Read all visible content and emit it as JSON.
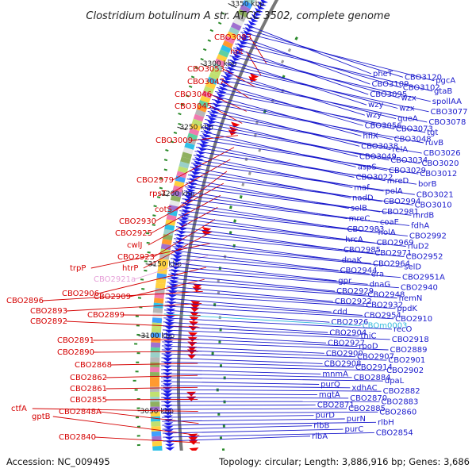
{
  "title": "Clostridium botulinum A str. ATCC 3502, complete genome",
  "footer": {
    "accession": "Accession: NC_009495",
    "summary": "Topology: circular; Length: 3,886,916 bp; Genes: 3,686"
  },
  "kbp_marks": [
    "3350 kbp",
    "3300 kbp",
    "3250 kbp",
    "3200 kbp",
    "3150 kbp",
    "3100 kbp",
    "3050 kbp"
  ],
  "left_labels": [
    {
      "text": "CBO3083",
      "color": "red"
    },
    {
      "text": "hpt",
      "color": "red"
    },
    {
      "text": "CBO3053",
      "color": "red"
    },
    {
      "text": "CBO3047",
      "color": "red"
    },
    {
      "text": "CBO3046",
      "color": "red"
    },
    {
      "text": "CBO3045",
      "color": "red"
    },
    {
      "text": "CBO3009",
      "color": "red"
    },
    {
      "text": "CBO2979",
      "color": "red"
    },
    {
      "text": "rpsT",
      "color": "red"
    },
    {
      "text": "cotS",
      "color": "red"
    },
    {
      "text": "CBO2930",
      "color": "red"
    },
    {
      "text": "CBO2925",
      "color": "red"
    },
    {
      "text": "cwlJ",
      "color": "red"
    },
    {
      "text": "CBO2923",
      "color": "red"
    },
    {
      "text": "htrP",
      "color": "red"
    },
    {
      "text": "trpP",
      "color": "red"
    },
    {
      "text": "CBO2921a",
      "color": "pink"
    },
    {
      "text": "CBO2906",
      "color": "red"
    },
    {
      "text": "CBO2909",
      "color": "red"
    },
    {
      "text": "CBO2896",
      "color": "red"
    },
    {
      "text": "CBO2893",
      "color": "red"
    },
    {
      "text": "CBO2899",
      "color": "red"
    },
    {
      "text": "CBO2892",
      "color": "red"
    },
    {
      "text": "CBO2891",
      "color": "red"
    },
    {
      "text": "CBO2890",
      "color": "red"
    },
    {
      "text": "CBO2868",
      "color": "red"
    },
    {
      "text": "CBO2862",
      "color": "red"
    },
    {
      "text": "CBO2861",
      "color": "red"
    },
    {
      "text": "CBO2855",
      "color": "red"
    },
    {
      "text": "ctfA",
      "color": "red"
    },
    {
      "text": "CBO2848A",
      "color": "red"
    },
    {
      "text": "gptB",
      "color": "red"
    },
    {
      "text": "CBO2840",
      "color": "red"
    }
  ],
  "right_labels": [
    {
      "text": "pheT",
      "color": "blue"
    },
    {
      "text": "CBO3120",
      "color": "blue"
    },
    {
      "text": "pgcA",
      "color": "blue"
    },
    {
      "text": "CBO3109",
      "color": "blue"
    },
    {
      "text": "CBO3102",
      "color": "blue"
    },
    {
      "text": "gtaB",
      "color": "blue"
    },
    {
      "text": "CBO3095",
      "color": "blue"
    },
    {
      "text": "wzx",
      "color": "blue"
    },
    {
      "text": "spollAA",
      "color": "blue"
    },
    {
      "text": "wzy",
      "color": "blue"
    },
    {
      "text": "wzx",
      "color": "blue"
    },
    {
      "text": "CBO3077",
      "color": "blue"
    },
    {
      "text": "wzy",
      "color": "blue"
    },
    {
      "text": "queA",
      "color": "blue"
    },
    {
      "text": "CBO3078",
      "color": "blue"
    },
    {
      "text": "CBO3056",
      "color": "blue"
    },
    {
      "text": "CBO3073",
      "color": "blue"
    },
    {
      "text": "tgt",
      "color": "blue"
    },
    {
      "text": "hflX",
      "color": "blue"
    },
    {
      "text": "CBO3048",
      "color": "blue"
    },
    {
      "text": "ruvB",
      "color": "blue"
    },
    {
      "text": "CBO3038",
      "color": "blue"
    },
    {
      "text": "relA",
      "color": "blue"
    },
    {
      "text": "CBO3026",
      "color": "blue"
    },
    {
      "text": "CBO3049",
      "color": "blue"
    },
    {
      "text": "CBO3034",
      "color": "blue"
    },
    {
      "text": "CBO3020",
      "color": "blue"
    },
    {
      "text": "aspS",
      "color": "blue"
    },
    {
      "text": "CBO3029",
      "color": "blue"
    },
    {
      "text": "CBO3012",
      "color": "blue"
    },
    {
      "text": "CBO3022",
      "color": "blue"
    },
    {
      "text": "mreD",
      "color": "blue"
    },
    {
      "text": "borB",
      "color": "blue"
    },
    {
      "text": "maf",
      "color": "blue"
    },
    {
      "text": "polA",
      "color": "blue"
    },
    {
      "text": "CBO3021",
      "color": "blue"
    },
    {
      "text": "nadD",
      "color": "blue"
    },
    {
      "text": "CBO2994",
      "color": "blue"
    },
    {
      "text": "CBO3010",
      "color": "blue"
    },
    {
      "text": "selB",
      "color": "blue"
    },
    {
      "text": "CBO2981",
      "color": "blue"
    },
    {
      "text": "mrdB",
      "color": "blue"
    },
    {
      "text": "mreC",
      "color": "blue"
    },
    {
      "text": "coaE",
      "color": "blue"
    },
    {
      "text": "fdhA",
      "color": "blue"
    },
    {
      "text": "CBO2983",
      "color": "blue"
    },
    {
      "text": "holA",
      "color": "blue"
    },
    {
      "text": "CBO2992",
      "color": "blue"
    },
    {
      "text": "hrcA",
      "color": "blue"
    },
    {
      "text": "CBO2969",
      "color": "blue"
    },
    {
      "text": "rluD2",
      "color": "blue"
    },
    {
      "text": "CBO2985",
      "color": "blue"
    },
    {
      "text": "CBO2971",
      "color": "blue"
    },
    {
      "text": "CBO2952",
      "color": "blue"
    },
    {
      "text": "dnaK",
      "color": "blue"
    },
    {
      "text": "CBO2964",
      "color": "blue"
    },
    {
      "text": "selD",
      "color": "blue"
    },
    {
      "text": "CBO2944",
      "color": "blue"
    },
    {
      "text": "era",
      "color": "blue"
    },
    {
      "text": "CBO2951A",
      "color": "blue"
    },
    {
      "text": "gpr",
      "color": "blue"
    },
    {
      "text": "dnaG",
      "color": "blue"
    },
    {
      "text": "CBO2940",
      "color": "blue"
    },
    {
      "text": "CBO2929",
      "color": "blue"
    },
    {
      "text": "CBO2948",
      "color": "blue"
    },
    {
      "text": "hemN",
      "color": "blue"
    },
    {
      "text": "CBO2922",
      "color": "blue"
    },
    {
      "text": "CBO2932",
      "color": "blue"
    },
    {
      "text": "ppdK",
      "color": "blue"
    },
    {
      "text": "cdd",
      "color": "blue"
    },
    {
      "text": "CBO2954",
      "color": "blue"
    },
    {
      "text": "CBO2910",
      "color": "blue"
    },
    {
      "text": "CBO2926",
      "color": "blue"
    },
    {
      "text": "CBOm0003",
      "color": "cyan"
    },
    {
      "text": "recO",
      "color": "blue"
    },
    {
      "text": "CBO2904",
      "color": "blue"
    },
    {
      "text": "thiC",
      "color": "blue"
    },
    {
      "text": "CBO2918",
      "color": "blue"
    },
    {
      "text": "CBO2927",
      "color": "blue"
    },
    {
      "text": "rpoD",
      "color": "blue"
    },
    {
      "text": "CBO2889",
      "color": "blue"
    },
    {
      "text": "CBO2900",
      "color": "blue"
    },
    {
      "text": "CBO2907",
      "color": "blue"
    },
    {
      "text": "CBO2901",
      "color": "blue"
    },
    {
      "text": "CBO2908",
      "color": "blue"
    },
    {
      "text": "CBO2914",
      "color": "blue"
    },
    {
      "text": "CBO2902",
      "color": "blue"
    },
    {
      "text": "mnmA",
      "color": "blue"
    },
    {
      "text": "CBO2884",
      "color": "blue"
    },
    {
      "text": "dpaL",
      "color": "blue"
    },
    {
      "text": "purQ",
      "color": "blue"
    },
    {
      "text": "xdhAC",
      "color": "blue"
    },
    {
      "text": "CBO2882",
      "color": "blue"
    },
    {
      "text": "mgtA",
      "color": "blue"
    },
    {
      "text": "CBO2870",
      "color": "blue"
    },
    {
      "text": "CBO2883",
      "color": "blue"
    },
    {
      "text": "CBO2871",
      "color": "blue"
    },
    {
      "text": "CBO2885",
      "color": "blue"
    },
    {
      "text": "CBO2860",
      "color": "blue"
    },
    {
      "text": "purD",
      "color": "blue"
    },
    {
      "text": "purN",
      "color": "blue"
    },
    {
      "text": "rlbH",
      "color": "blue"
    },
    {
      "text": "ribB",
      "color": "blue"
    },
    {
      "text": "purC",
      "color": "blue"
    },
    {
      "text": "CBO2854",
      "color": "blue"
    },
    {
      "text": "ribA",
      "color": "blue"
    }
  ],
  "colors": {
    "left_label": "#d40000",
    "right_label": "#1a1acc",
    "forward_gene": "#1a1aee",
    "reverse_gene": "#ee0000",
    "backbone": "#777777",
    "tick": "#2a8a2a"
  }
}
